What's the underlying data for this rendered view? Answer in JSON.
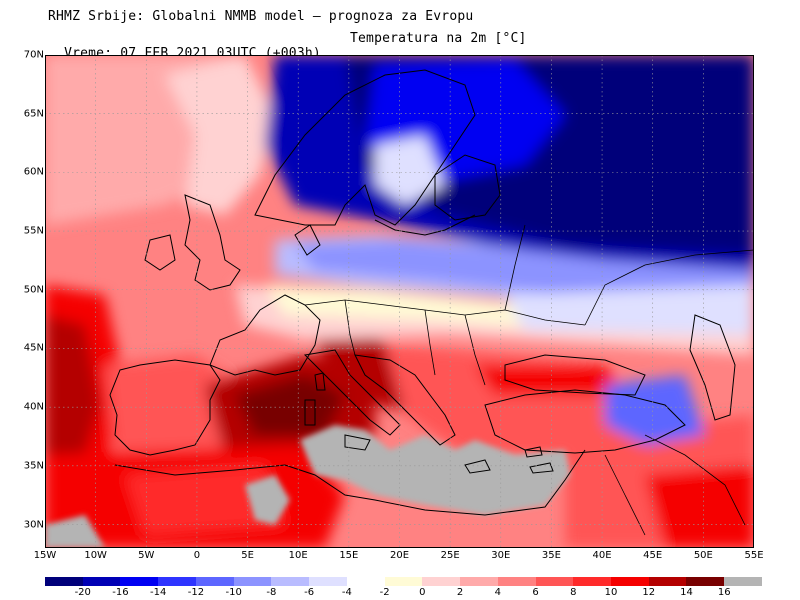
{
  "header": {
    "line1": "RHMZ Srbije: Globalni NMMB model — prognoza za Evropu",
    "line2_time": "Vreme: 07 FEB 2021 03UTC (+003h)",
    "line2_param": "Temperatura na 2m [°C]"
  },
  "map": {
    "lon_range": [
      -15,
      55
    ],
    "lat_range": [
      28,
      70
    ],
    "lat_labels": [
      "30N",
      "35N",
      "40N",
      "45N",
      "50N",
      "55N",
      "60N",
      "65N",
      "70N"
    ],
    "lon_labels": [
      "15W",
      "10W",
      "5W",
      "0",
      "5E",
      "10E",
      "15E",
      "20E",
      "25E",
      "30E",
      "35E",
      "40E",
      "45E",
      "50E",
      "55E"
    ],
    "land_mask_color": "#b4b4b4",
    "grid": "dotted"
  },
  "colorbar": {
    "labels": [
      "-20",
      "-16",
      "-14",
      "-12",
      "-10",
      "-8",
      "-6",
      "-4",
      "-2",
      "0",
      "2",
      "4",
      "6",
      "8",
      "10",
      "12",
      "14",
      "16"
    ],
    "colors": [
      "#00007a",
      "#0000b5",
      "#0000f2",
      "#2e34ff",
      "#5d66ff",
      "#8c93ff",
      "#b9bcff",
      "#dfe0ff",
      "#ffffff",
      "#fffbd6",
      "#ffd2d2",
      "#ffaaaa",
      "#ff8282",
      "#ff5555",
      "#ff2a2a",
      "#f50000",
      "#b40000",
      "#780000",
      "#b4b4b4"
    ]
  }
}
